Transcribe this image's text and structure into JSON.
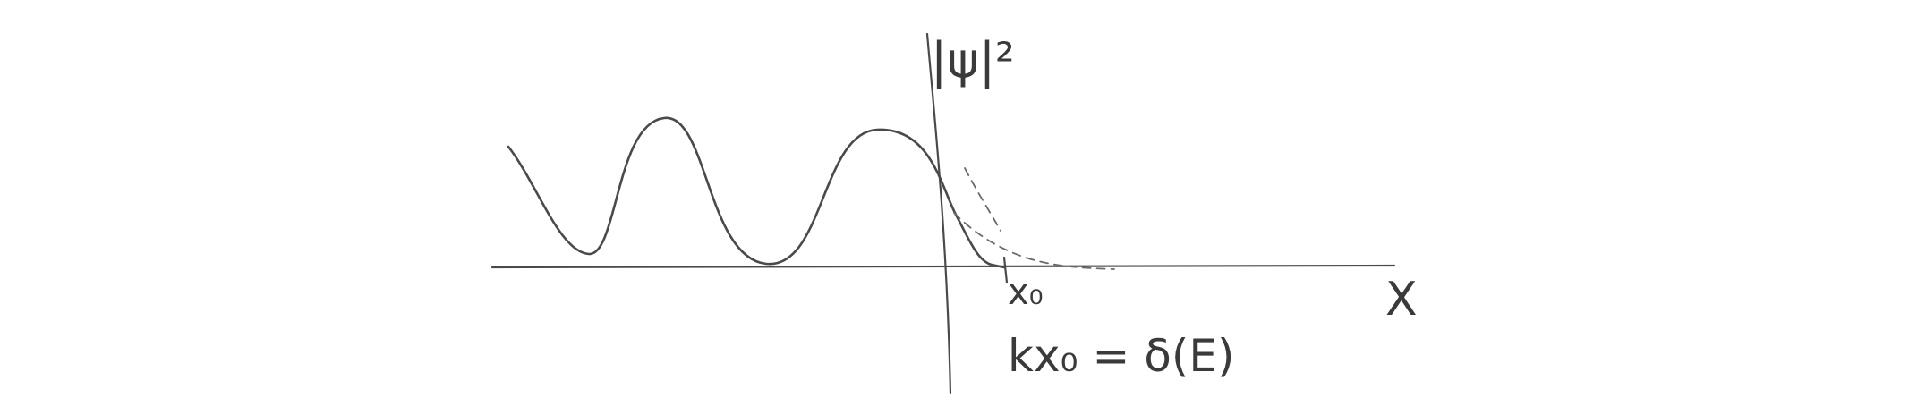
{
  "diagram": {
    "y_axis_label": "|ψ|²",
    "x_axis_label": "X",
    "turning_point_label": "x₀",
    "relation": "kx₀ = δ(E)"
  }
}
